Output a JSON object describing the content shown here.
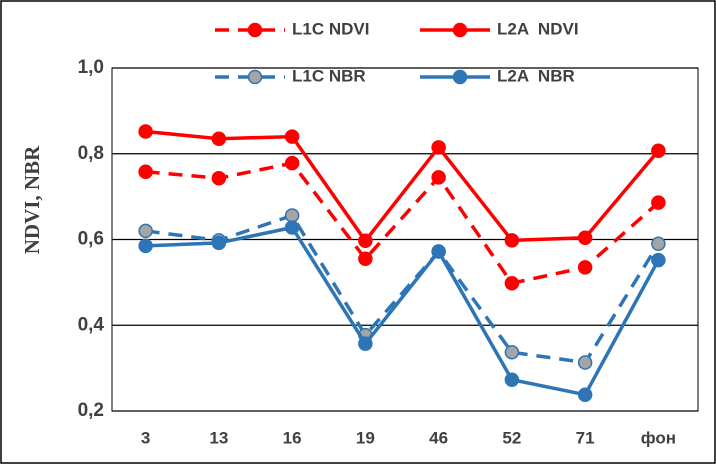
{
  "chart_data": {
    "type": "line",
    "ylabel": "NDVI, NBR",
    "categories": [
      "3",
      "13",
      "16",
      "19",
      "46",
      "52",
      "71",
      "фон"
    ],
    "series": [
      {
        "name": "L1C NDVI",
        "color": "#ff0000",
        "dash": true,
        "values": [
          0.758,
          0.743,
          0.778,
          0.555,
          0.745,
          0.498,
          0.535,
          0.686
        ]
      },
      {
        "name": "L2A  NDVI",
        "color": "#ff0000",
        "dash": false,
        "values": [
          0.852,
          0.835,
          0.84,
          0.597,
          0.815,
          0.598,
          0.604,
          0.807
        ]
      },
      {
        "name": "L1C NBR",
        "color": "#2e75b6",
        "marker_color": "#a5a5a5",
        "dash": true,
        "values": [
          0.62,
          0.598,
          0.656,
          0.377,
          0.572,
          0.337,
          0.313,
          0.59
        ]
      },
      {
        "name": "L2A  NBR",
        "color": "#2e75b6",
        "dash": false,
        "values": [
          0.585,
          0.592,
          0.628,
          0.357,
          0.572,
          0.273,
          0.238,
          0.552
        ]
      }
    ],
    "ylim": [
      0.2,
      1.0
    ],
    "yticks": [
      {
        "value": 0.2,
        "label": "0,2"
      },
      {
        "value": 0.4,
        "label": "0,4"
      },
      {
        "value": 0.6,
        "label": "0,6"
      },
      {
        "value": 0.8,
        "label": "0,8"
      },
      {
        "value": 1.0,
        "label": "1,0"
      }
    ],
    "grid": true,
    "legend": "top"
  }
}
